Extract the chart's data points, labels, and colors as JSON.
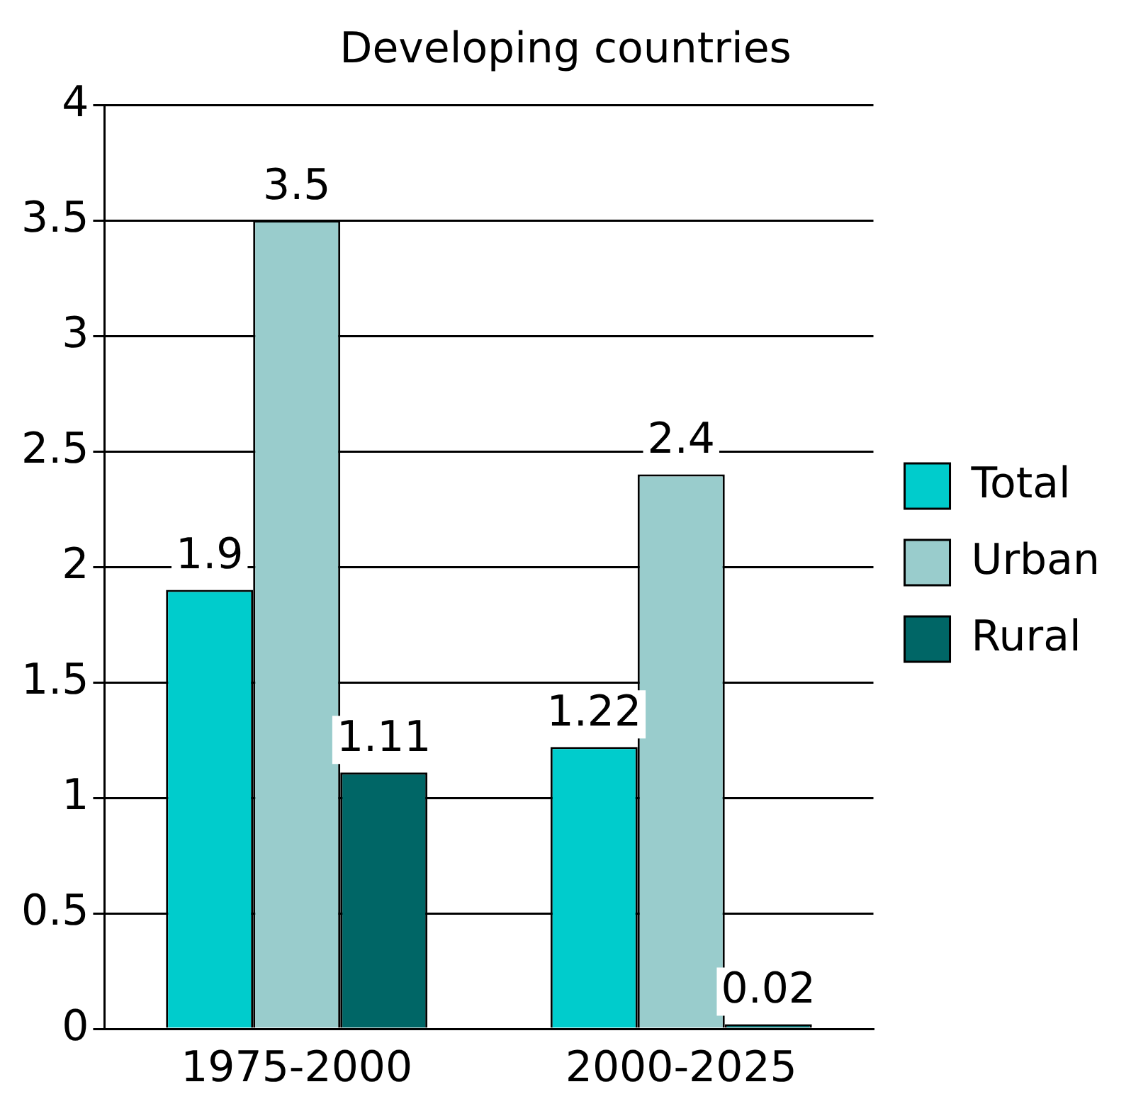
{
  "chart_data": {
    "type": "bar",
    "title": "Developing countries",
    "categories": [
      "1975-2000",
      "2000-2025"
    ],
    "series": [
      {
        "name": "Total",
        "color": "#00cccc",
        "values": [
          1.9,
          1.22
        ]
      },
      {
        "name": "Urban",
        "color": "#99cccc",
        "values": [
          3.5,
          2.4
        ]
      },
      {
        "name": "Rural",
        "color": "#006666",
        "values": [
          1.11,
          0.02
        ]
      }
    ],
    "ylim": [
      0,
      4
    ],
    "yticks": [
      0,
      0.5,
      1,
      1.5,
      2,
      2.5,
      3,
      3.5,
      4
    ],
    "grid": "y",
    "legend": "right",
    "data_labels": true
  }
}
